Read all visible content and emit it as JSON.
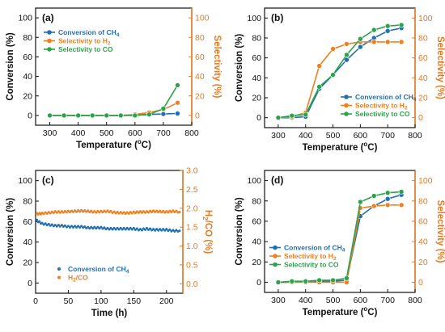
{
  "colors": {
    "conversion": "#1f6fb2",
    "selectivity_h2": "#f07f1e",
    "selectivity_co": "#2aa34a",
    "axis": "#111111",
    "right_axis": "#e87a1e"
  },
  "chart_data": [
    {
      "panel": "a",
      "panel_label": "(a)",
      "type": "line",
      "xlabel": "Temperature (",
      "xlabel_sup": "o",
      "xlabel_end": "C)",
      "ylabel": "Conversion (%)",
      "ylabel_right": "Selectivity (%)",
      "xlim": [
        250,
        800
      ],
      "ylim": [
        -10,
        110
      ],
      "ylim_right": [
        -10,
        110
      ],
      "xticks": [
        "300",
        "400",
        "500",
        "600",
        "700",
        "800"
      ],
      "yticks": [
        "0",
        "20",
        "40",
        "60",
        "80",
        "100"
      ],
      "yticks_right": [
        "0",
        "20",
        "40",
        "60",
        "80",
        "100"
      ],
      "legend_position": "top-left",
      "legend": [
        {
          "text": "Conversion of CH",
          "sub": "4",
          "color": "#1f6fb2",
          "marker": "circle"
        },
        {
          "text": "Selectivity to H",
          "sub": "2",
          "color": "#f07f1e",
          "marker": "circle"
        },
        {
          "text": "Selectivity to CO",
          "sub": "",
          "color": "#2aa34a",
          "marker": "circle"
        }
      ],
      "series": [
        {
          "name": "Conversion of CH4",
          "color": "#1f6fb2",
          "axis": "left",
          "x": [
            300,
            350,
            400,
            450,
            500,
            550,
            600,
            650,
            700,
            750
          ],
          "y": [
            0,
            0,
            0,
            0,
            0,
            0,
            0.5,
            1,
            1.5,
            2
          ]
        },
        {
          "name": "Selectivity to H2",
          "color": "#f07f1e",
          "axis": "right",
          "x": [
            300,
            350,
            400,
            450,
            500,
            550,
            600,
            650,
            700,
            750
          ],
          "y": [
            0,
            0,
            0,
            0,
            0,
            0,
            1,
            3,
            6,
            13
          ]
        },
        {
          "name": "Selectivity to CO",
          "color": "#2aa34a",
          "axis": "right",
          "x": [
            300,
            350,
            400,
            450,
            500,
            550,
            600,
            650,
            700,
            750
          ],
          "y": [
            0,
            0,
            0,
            0,
            0,
            0,
            0,
            1,
            7,
            31
          ]
        }
      ]
    },
    {
      "panel": "b",
      "panel_label": "(b)",
      "type": "line",
      "xlabel": "Temperature (",
      "xlabel_sup": "o",
      "xlabel_end": "C)",
      "ylabel": "Conversion (%)",
      "ylabel_right": "Selectivity (%)",
      "xlim": [
        250,
        800
      ],
      "ylim": [
        -10,
        110
      ],
      "ylim_right": [
        -10,
        110
      ],
      "xticks": [
        "300",
        "400",
        "500",
        "600",
        "700",
        "800"
      ],
      "yticks": [
        "0",
        "20",
        "40",
        "60",
        "80",
        "100"
      ],
      "yticks_right": [
        "0",
        "20",
        "40",
        "60",
        "80",
        "100"
      ],
      "legend_position": "bottom-right",
      "legend": [
        {
          "text": "Conversion of CH",
          "sub": "4",
          "color": "#1f6fb2",
          "marker": "circle"
        },
        {
          "text": "Selectivity to H",
          "sub": "2",
          "color": "#f07f1e",
          "marker": "circle"
        },
        {
          "text": "Selectivity to CO",
          "sub": "",
          "color": "#2aa34a",
          "marker": "circle"
        }
      ],
      "series": [
        {
          "name": "Conversion of CH4",
          "color": "#1f6fb2",
          "axis": "left",
          "x": [
            300,
            350,
            400,
            450,
            500,
            550,
            600,
            650,
            700,
            750
          ],
          "y": [
            0,
            0,
            1,
            29,
            43,
            58,
            71,
            80,
            87,
            90
          ]
        },
        {
          "name": "Selectivity to H2",
          "color": "#f07f1e",
          "axis": "right",
          "x": [
            300,
            350,
            400,
            450,
            500,
            550,
            600,
            650,
            700,
            750
          ],
          "y": [
            0,
            1,
            5,
            52,
            69,
            74,
            76,
            76,
            76,
            76
          ]
        },
        {
          "name": "Selectivity to CO",
          "color": "#2aa34a",
          "axis": "right",
          "x": [
            300,
            350,
            400,
            450,
            500,
            550,
            600,
            650,
            700,
            750
          ],
          "y": [
            0,
            2,
            3,
            31,
            43,
            63,
            79,
            88,
            92,
            93
          ]
        }
      ]
    },
    {
      "panel": "c",
      "panel_label": "(c)",
      "type": "scatter",
      "xlabel": "Time (h)",
      "xlabel_sup": "",
      "xlabel_end": "",
      "ylabel": "Conversion (%)",
      "ylabel_right": "H",
      "ylabel_right_sub": "2",
      "ylabel_right_end": "/CO (%)",
      "xlim": [
        0,
        225
      ],
      "ylim": [
        -10,
        110
      ],
      "ylim_right": [
        -0.25,
        3.0
      ],
      "xticks": [
        "0",
        "50",
        "100",
        "150",
        "200"
      ],
      "yticks": [
        "0",
        "20",
        "40",
        "60",
        "80",
        "100"
      ],
      "yticks_right": [
        "0.0",
        "0.5",
        "1.0",
        "1.5",
        "2.0",
        "2.5",
        "3.0"
      ],
      "legend_position": "bottom-left",
      "legend": [
        {
          "text": "Conversion of CH",
          "sub": "4",
          "color": "#1f6fb2",
          "marker": "dot"
        },
        {
          "text": "H",
          "sub": "2",
          "text_end": "/CO",
          "color": "#f07f1e",
          "marker": "dot"
        }
      ],
      "series": [
        {
          "name": "Conversion of CH4",
          "color": "#1f6fb2",
          "axis": "left",
          "x": [
            2,
            10,
            20,
            30,
            40,
            50,
            60,
            70,
            80,
            90,
            100,
            110,
            120,
            130,
            140,
            150,
            160,
            170,
            180,
            190,
            200,
            210,
            220
          ],
          "y": [
            61,
            58,
            57,
            56,
            56,
            55,
            55,
            55,
            54,
            54,
            54,
            53,
            53,
            53,
            53,
            53,
            52,
            53,
            52,
            52,
            52,
            51,
            51
          ]
        },
        {
          "name": "H2/CO",
          "color": "#f07f1e",
          "axis": "right",
          "x": [
            2,
            10,
            20,
            30,
            40,
            50,
            60,
            70,
            80,
            90,
            100,
            110,
            120,
            130,
            140,
            150,
            160,
            170,
            180,
            190,
            200,
            210,
            220
          ],
          "y": [
            1.85,
            1.86,
            1.88,
            1.9,
            1.9,
            1.91,
            1.92,
            1.93,
            1.92,
            1.9,
            1.91,
            1.92,
            1.89,
            1.88,
            1.87,
            1.89,
            1.9,
            1.9,
            1.92,
            1.91,
            1.9,
            1.92,
            1.9
          ]
        }
      ]
    },
    {
      "panel": "d",
      "panel_label": "(d)",
      "type": "line",
      "xlabel": "Temperature (",
      "xlabel_sup": "o",
      "xlabel_end": "C)",
      "ylabel": "Conversion (%)",
      "ylabel_right": "Selectivity (%)",
      "xlim": [
        250,
        800
      ],
      "ylim": [
        -10,
        110
      ],
      "ylim_right": [
        -10,
        110
      ],
      "xticks": [
        "300",
        "400",
        "500",
        "600",
        "700",
        "800"
      ],
      "yticks": [
        "0",
        "20",
        "40",
        "60",
        "80",
        "100"
      ],
      "yticks_right": [
        "0",
        "20",
        "40",
        "60",
        "80",
        "100"
      ],
      "legend_position": "middle-left",
      "legend": [
        {
          "text": "Conversion of CH",
          "sub": "4",
          "color": "#1f6fb2",
          "marker": "circle"
        },
        {
          "text": "Selectivity to H",
          "sub": "2",
          "color": "#f07f1e",
          "marker": "circle"
        },
        {
          "text": "Selectivity to CO",
          "sub": "",
          "color": "#2aa34a",
          "marker": "circle"
        }
      ],
      "series": [
        {
          "name": "Conversion of CH4",
          "color": "#1f6fb2",
          "axis": "left",
          "x": [
            300,
            350,
            400,
            450,
            500,
            550,
            600,
            650,
            700,
            750
          ],
          "y": [
            0,
            0,
            1,
            1,
            1,
            2,
            65,
            75,
            82,
            86
          ]
        },
        {
          "name": "Selectivity to H2",
          "color": "#f07f1e",
          "axis": "right",
          "x": [
            300,
            350,
            400,
            450,
            500,
            550,
            600,
            650,
            700,
            750
          ],
          "y": [
            0,
            0,
            0,
            0,
            0,
            0,
            73,
            75,
            76,
            76
          ]
        },
        {
          "name": "Selectivity to CO",
          "color": "#2aa34a",
          "axis": "right",
          "x": [
            300,
            350,
            400,
            450,
            500,
            550,
            600,
            650,
            700,
            750
          ],
          "y": [
            0,
            1,
            1,
            2,
            2,
            4,
            79,
            85,
            88,
            89
          ]
        }
      ]
    }
  ]
}
